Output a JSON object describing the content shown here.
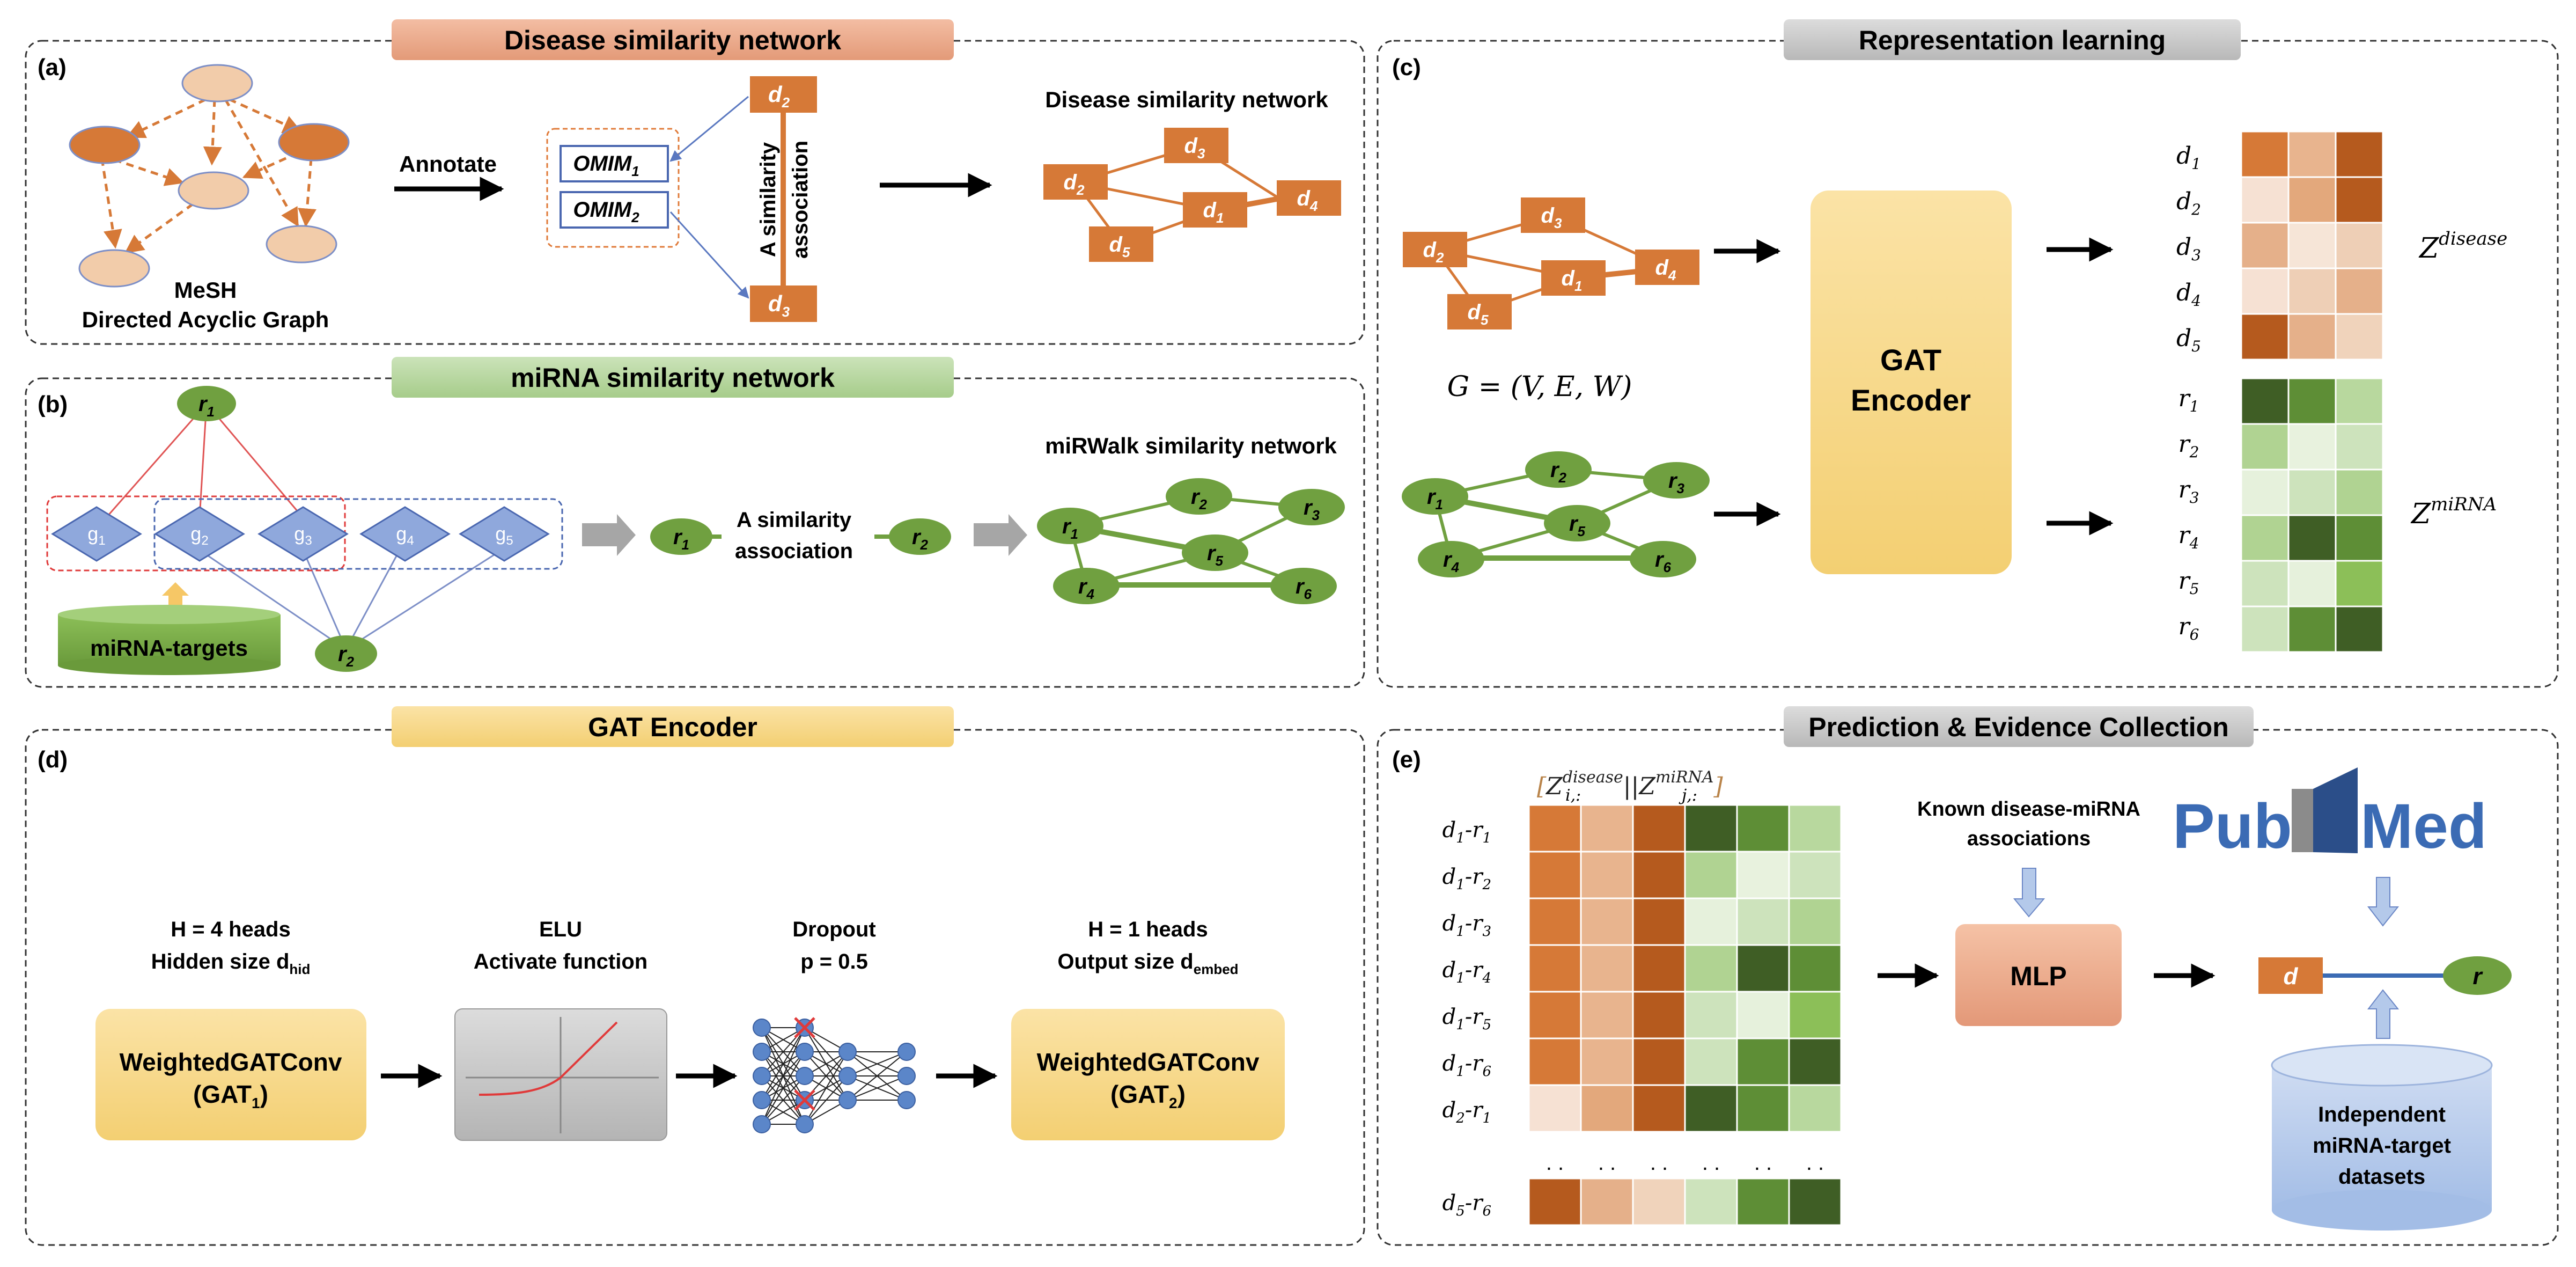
{
  "colors": {
    "orange": "#d67937",
    "orange_light": "#f2ccaa",
    "orange_border": "#e07b3a",
    "green": "#70a040",
    "green_dark": "#4f7a2b",
    "blue_node": "#8fa8dc",
    "blue_border": "#4a67b0",
    "gat_fill": "#f6d98a",
    "mlp_fill": "#e9a98a",
    "db_fill": "#b4c9ea",
    "header_orange": "#e9a98a",
    "header_green": "#b2d39b",
    "header_gray": "#bfbfbf",
    "header_yellow": "#f7d98b"
  },
  "panels": {
    "a": {
      "tag": "(a)",
      "header": "Disease similarity network",
      "mesh_label_line1": "MeSH",
      "mesh_label_line2": "Directed Acyclic Graph",
      "annotate": "Annotate",
      "omim1": "OMIM",
      "omim1_sub": "1",
      "omim2": "OMIM",
      "omim2_sub": "2",
      "sim_assoc_line1": "A similarity",
      "sim_assoc_line2": "association",
      "d_top": "d",
      "d_top_sub": "2",
      "d_bottom": "d",
      "d_bottom_sub": "3",
      "network_title": "Disease similarity network",
      "net_nodes": [
        {
          "name": "d",
          "sub": "3"
        },
        {
          "name": "d",
          "sub": "2"
        },
        {
          "name": "d",
          "sub": "1"
        },
        {
          "name": "d",
          "sub": "4"
        },
        {
          "name": "d",
          "sub": "5"
        }
      ]
    },
    "b": {
      "tag": "(b)",
      "header": "miRNA similarity network",
      "r1": "r",
      "r1_sub": "1",
      "r2": "r",
      "r2_sub": "2",
      "genes": [
        {
          "name": "g",
          "sub": "1"
        },
        {
          "name": "g",
          "sub": "2"
        },
        {
          "name": "g",
          "sub": "3"
        },
        {
          "name": "g",
          "sub": "4"
        },
        {
          "name": "g",
          "sub": "5"
        }
      ],
      "targets_label": "miRNA-targets",
      "sim_assoc_line1": "A similarity",
      "sim_assoc_line2": "association",
      "network_title": "miRWalk similarity network",
      "net_nodes": [
        {
          "name": "r",
          "sub": "2"
        },
        {
          "name": "r",
          "sub": "3"
        },
        {
          "name": "r",
          "sub": "1"
        },
        {
          "name": "r",
          "sub": "5"
        },
        {
          "name": "r",
          "sub": "4"
        },
        {
          "name": "r",
          "sub": "6"
        }
      ]
    },
    "c": {
      "tag": "(c)",
      "header": "Representation learning",
      "graph_formula": "G = (V, E, W)",
      "gat_line1": "GAT",
      "gat_line2": "Encoder",
      "d_rows": [
        {
          "name": "d",
          "sub": "1"
        },
        {
          "name": "d",
          "sub": "2"
        },
        {
          "name": "d",
          "sub": "3"
        },
        {
          "name": "d",
          "sub": "4"
        },
        {
          "name": "d",
          "sub": "5"
        }
      ],
      "r_rows": [
        {
          "name": "r",
          "sub": "1"
        },
        {
          "name": "r",
          "sub": "2"
        },
        {
          "name": "r",
          "sub": "3"
        },
        {
          "name": "r",
          "sub": "4"
        },
        {
          "name": "r",
          "sub": "5"
        },
        {
          "name": "r",
          "sub": "6"
        }
      ],
      "z_disease": "Z",
      "z_disease_sup": "disease",
      "z_mirna": "Z",
      "z_mirna_sup": "miRNA",
      "disease_matrix": [
        [
          "#d67937",
          "#e8b48e",
          "#b55a1e"
        ],
        [
          "#f6e1d3",
          "#e3a87c",
          "#b55a1e"
        ],
        [
          "#e5b08a",
          "#f6e5d7",
          "#eecfb6"
        ],
        [
          "#f6e1d3",
          "#eecfb6",
          "#e5b08a"
        ],
        [
          "#b55a1e",
          "#e5b08a",
          "#f0d3bb"
        ]
      ],
      "mirna_matrix": [
        [
          "#3f5e25",
          "#5e8e36",
          "#b8d89e"
        ],
        [
          "#b0d392",
          "#e8f2de",
          "#cde3bc"
        ],
        [
          "#e6f1dc",
          "#cde3bc",
          "#b0d392"
        ],
        [
          "#b0d392",
          "#3f5e25",
          "#5e8e36"
        ],
        [
          "#cde3bc",
          "#e6f1dc",
          "#8cbf58"
        ],
        [
          "#cde3bc",
          "#5e8e36",
          "#3f5e25"
        ]
      ]
    },
    "d": {
      "tag": "(d)",
      "header": "GAT Encoder",
      "gat1_cap_line1": "H = 4 heads",
      "gat1_cap_line2": "Hidden size d",
      "gat1_cap_sub": "hid",
      "gat1_line1": "WeightedGATConv",
      "gat1_line2": "(GAT",
      "gat1_line2_sub": "1",
      "elu_line1": "ELU",
      "elu_line2": "Activate function",
      "dropout_line1": "Dropout",
      "dropout_line2": "p = 0.5",
      "gat2_cap_line1": "H = 1 heads",
      "gat2_cap_line2": "Output size d",
      "gat2_cap_sub": "embed",
      "gat2_line1": "WeightedGATConv",
      "gat2_line2": "(GAT",
      "gat2_line2_sub": "2"
    },
    "e": {
      "tag": "(e)",
      "header": "Prediction & Evidence Collection",
      "concat_label": "[Z_{i,:}^{disease} || Z_{j,:}^{miRNA}]",
      "concat_left": "Z",
      "concat_left_sub": "i,:",
      "concat_left_sup": "disease",
      "concat_sep": "||",
      "concat_right": "Z",
      "concat_right_sub": "j,:",
      "concat_right_sup": "miRNA",
      "pairs": [
        {
          "d": "1",
          "r": "1"
        },
        {
          "d": "1",
          "r": "2"
        },
        {
          "d": "1",
          "r": "3"
        },
        {
          "d": "1",
          "r": "4"
        },
        {
          "d": "1",
          "r": "5"
        },
        {
          "d": "1",
          "r": "6"
        },
        {
          "d": "2",
          "r": "1"
        }
      ],
      "last_pair": {
        "d": "5",
        "r": "6"
      },
      "ellipsis": ". .",
      "known_line1": "Known disease-miRNA",
      "known_line2": "associations",
      "mlp": "MLP",
      "node_d": "d",
      "node_r": "r",
      "pubmed_left": "Pub",
      "pubmed_right": "Med",
      "db_line1": "Independent",
      "db_line2": "miRNA-target",
      "db_line3": "datasets"
    }
  }
}
